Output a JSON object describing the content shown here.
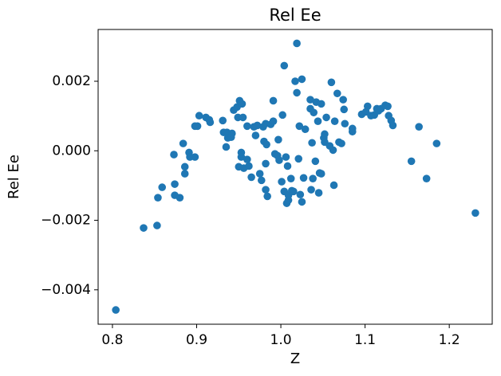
{
  "chart_data": {
    "type": "scatter",
    "title": "Rel Ee",
    "xlabel": "Z",
    "ylabel": "Rel Ee",
    "color": "#1f77b4",
    "xlim": [
      0.783,
      1.251
    ],
    "ylim": [
      -0.00499,
      0.00349
    ],
    "xticks": [
      0.8,
      0.9,
      {
        "value": 1.0,
        "label": "1.0"
      },
      1.1,
      1.2
    ],
    "yticks": [
      {
        "value": -0.004,
        "label": "−0.004"
      },
      {
        "value": -0.002,
        "label": "−0.002"
      },
      {
        "value": 0,
        "label": "0.000"
      },
      {
        "value": 0.002,
        "label": "0.002"
      }
    ],
    "x": [
      0.804,
      0.837,
      0.853,
      0.854,
      0.859,
      0.873,
      0.874,
      0.874,
      0.88,
      0.884,
      0.886,
      0.886,
      0.891,
      0.892,
      0.898,
      0.898,
      0.901,
      0.903,
      0.911,
      0.915,
      0.916,
      0.931,
      0.932,
      0.935,
      0.936,
      0.937,
      0.941,
      0.942,
      0.944,
      0.948,
      0.951,
      0.949,
      0.954,
      0.95,
      0.953,
      0.953,
      0.956,
      0.955,
      0.96,
      0.96,
      0.962,
      0.965,
      0.968,
      0.97,
      0.972,
      0.975,
      0.977,
      0.979,
      0.98,
      0.982,
      0.983,
      0.982,
      0.982,
      0.984,
      0.988,
      0.991,
      0.991,
      0.993,
      0.996,
      0.997,
      0.998,
      1.001,
      1.002,
      1.004,
      1.004,
      1.006,
      1.008,
      1.007,
      1.009,
      1.009,
      1.012,
      1.013,
      1.015,
      1.017,
      1.019,
      1.019,
      1.021,
      1.022,
      1.023,
      1.025,
      1.025,
      1.027,
      1.029,
      1.035,
      1.035,
      1.036,
      1.037,
      1.038,
      1.039,
      1.041,
      1.042,
      1.044,
      1.045,
      1.046,
      1.048,
      1.048,
      1.051,
      1.052,
      1.052,
      1.054,
      1.058,
      1.06,
      1.062,
      1.063,
      1.064,
      1.067,
      1.069,
      1.072,
      1.074,
      1.075,
      1.076,
      1.085,
      1.085,
      1.096,
      1.101,
      1.103,
      1.107,
      1.111,
      1.114,
      1.116,
      1.119,
      1.124,
      1.127,
      1.128,
      1.131,
      1.133,
      1.155,
      1.164,
      1.173,
      1.185,
      1.231
    ],
    "values": [
      -0.00458,
      -0.00222,
      -0.00215,
      -0.00135,
      -0.00105,
      -0.00011,
      -0.00096,
      -0.00128,
      -0.00135,
      0.00021,
      -0.00046,
      -0.00066,
      -5e-05,
      -0.00018,
      -0.00018,
      0.00071,
      0.00071,
      0.00101,
      0.00096,
      0.00089,
      0.00082,
      0.00087,
      0.00053,
      0.00011,
      0.00053,
      0.00037,
      0.00039,
      0.0005,
      0.00117,
      0.00126,
      0.00144,
      0.00096,
      0.00135,
      -0.00046,
      -5e-05,
      -0.00018,
      -0.0005,
      0.00096,
      0.00071,
      -0.00025,
      -0.00044,
      -0.00076,
      0.00069,
      0.00044,
      0.00073,
      -0.00066,
      -0.00085,
      0.00069,
      0.00027,
      0.00078,
      0.00018,
      -0.00037,
      -0.00112,
      -0.00131,
      0.00076,
      0.00144,
      0.00085,
      -9e-05,
      -0.00014,
      0.00032,
      -0.00027,
      -0.00089,
      0.00103,
      0.00245,
      -0.00117,
      -0.00018,
      -0.00044,
      -0.00151,
      -0.00142,
      -0.00128,
      -0.0008,
      -0.00115,
      -0.00117,
      0.002,
      0.00309,
      0.00167,
      -0.00023,
      0.00071,
      -0.00126,
      0.00206,
      -0.00147,
      -0.00078,
      0.00062,
      0.00121,
      0.00147,
      -0.00112,
      0.00023,
      -0.0008,
      0.0011,
      -0.0003,
      0.0014,
      0.00085,
      -0.00121,
      -0.00064,
      0.00135,
      -0.00066,
      0.00037,
      0.00025,
      0.00048,
      0.00096,
      0.00014,
      0.00197,
      2e-05,
      -0.00099,
      0.00085,
      0.00165,
      0.00025,
      0.00021,
      0.00147,
      0.00119,
      0.00078,
      0.00055,
      0.00064,
      0.00105,
      0.00112,
      0.00128,
      0.00101,
      0.00103,
      0.00121,
      0.00115,
      0.00121,
      0.00131,
      0.00128,
      0.00101,
      0.00087,
      0.00073,
      -0.0003,
      0.00069,
      -0.0008,
      0.00021,
      -0.00179
    ]
  }
}
